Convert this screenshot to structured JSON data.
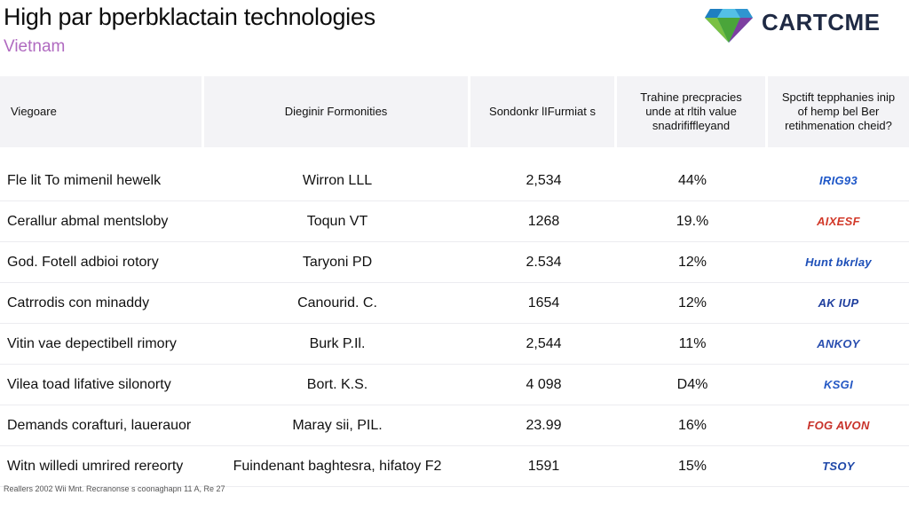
{
  "header": {
    "title": "High par bperbklactain technologies",
    "subtitle": "Vietnam",
    "logo_text": "CARTCME"
  },
  "table": {
    "columns": [
      "Viegoare",
      "Dieginir Formonities",
      "Sondonkr lIFurmiat s",
      "Trahine precpracies unde at rltih value snadrififfleyand",
      "Spctift tepphanies inip of hemp bel Ber retihmenation cheid?"
    ],
    "rows": [
      {
        "name": "Fle lit To mimenil hewelk",
        "company": "Wirron LLL",
        "value": "2,534",
        "percent": "44%",
        "brand": "IRIG93",
        "brand_color": "#1e57c8"
      },
      {
        "name": "Cerallur abmal mentsloby",
        "company": "Toqun VT",
        "value": "1268",
        "percent": "19.%",
        "brand": "AIXESF",
        "brand_color": "#d23a2a"
      },
      {
        "name": "God. Fotell adbioi rotory",
        "company": "Taryoni PD",
        "value": "2.534",
        "percent": "12%",
        "brand": "Hunt bkrlay",
        "brand_color": "#1d4fb8"
      },
      {
        "name": "Catrrodis con minaddy",
        "company": "Canourid. C.",
        "value": "1654",
        "percent": "12%",
        "brand": "AK IUP",
        "brand_color": "#1f3f9e"
      },
      {
        "name": "Vitin vae depectibell rimory",
        "company": "Burk P.Il.",
        "value": "2,544",
        "percent": "11%",
        "brand": "ANKOY",
        "brand_color": "#2a4fb0"
      },
      {
        "name": "Vilea toad lifative silonorty",
        "company": "Bort. K.S.",
        "value": "4 098",
        "percent": "D4%",
        "brand": "KSGI",
        "brand_color": "#2458c4"
      },
      {
        "name": "Demands corafturi, lauerauor",
        "company": "Maray sii, PIL.",
        "value": "23.99",
        "percent": "16%",
        "brand": "FOG AVON",
        "brand_color": "#c8322a"
      },
      {
        "name": "Witn willedi umrired rereorty",
        "company": "Fuindenant baghtesra, hifatoy F2",
        "value": "1591",
        "percent": "15%",
        "brand": "TSOY",
        "brand_color": "#1e47a8"
      }
    ]
  },
  "footer": {
    "text": "Reallers 2002 Wii Mnt. Recranonse s coonaghapn 11 A, Re 27"
  },
  "colors": {
    "accent": "#b06ac0",
    "header_bg": "#f3f3f6"
  }
}
